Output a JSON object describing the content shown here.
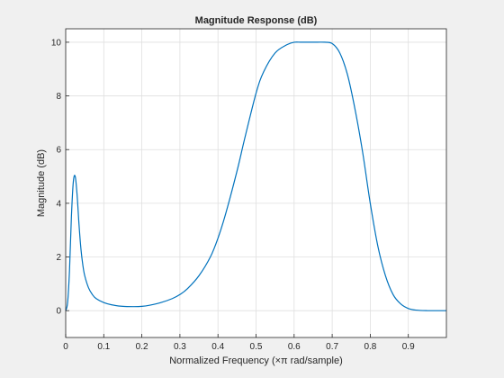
{
  "chart_data": {
    "type": "line",
    "title": "Magnitude Response (dB)",
    "xlabel": "Normalized Frequency (×π rad/sample)",
    "ylabel": "Magnitude (dB)",
    "xlim": [
      0,
      1
    ],
    "ylim": [
      -1,
      10.5
    ],
    "xticks": [
      "0",
      "0.1",
      "0.2",
      "0.3",
      "0.4",
      "0.5",
      "0.6",
      "0.7",
      "0.8",
      "0.9"
    ],
    "xtick_values": [
      0,
      0.1,
      0.2,
      0.3,
      0.4,
      0.5,
      0.6,
      0.7,
      0.8,
      0.9
    ],
    "yticks": [
      "0",
      "2",
      "4",
      "6",
      "8",
      "10"
    ],
    "ytick_values": [
      0,
      2,
      4,
      6,
      8,
      10
    ],
    "grid": true,
    "line_color": "#0072bd",
    "series": [
      {
        "x": [
          0,
          0.005,
          0.01,
          0.015,
          0.02,
          0.025,
          0.03,
          0.035,
          0.04,
          0.045,
          0.05,
          0.06,
          0.07,
          0.08,
          0.1,
          0.12,
          0.15,
          0.18,
          0.2,
          0.22,
          0.25,
          0.28,
          0.3,
          0.32,
          0.35,
          0.38,
          0.4,
          0.42,
          0.45,
          0.47,
          0.5,
          0.52,
          0.55,
          0.58,
          0.6,
          0.62,
          0.65,
          0.68,
          0.7,
          0.72,
          0.74,
          0.76,
          0.78,
          0.8,
          0.82,
          0.84,
          0.86,
          0.88,
          0.9,
          0.92,
          0.95,
          0.98,
          1.0
        ],
        "y": [
          0,
          0.3,
          1.5,
          3.5,
          4.8,
          5.0,
          4.3,
          3.2,
          2.3,
          1.7,
          1.3,
          0.85,
          0.6,
          0.45,
          0.3,
          0.22,
          0.16,
          0.15,
          0.16,
          0.2,
          0.3,
          0.45,
          0.6,
          0.82,
          1.3,
          2.0,
          2.7,
          3.6,
          5.2,
          6.4,
          8.1,
          8.9,
          9.6,
          9.9,
          10.0,
          10.0,
          10.0,
          10.0,
          9.95,
          9.6,
          8.8,
          7.5,
          5.9,
          4.0,
          2.4,
          1.3,
          0.6,
          0.25,
          0.08,
          0.02,
          0.0,
          0.0,
          0.0
        ]
      }
    ]
  }
}
